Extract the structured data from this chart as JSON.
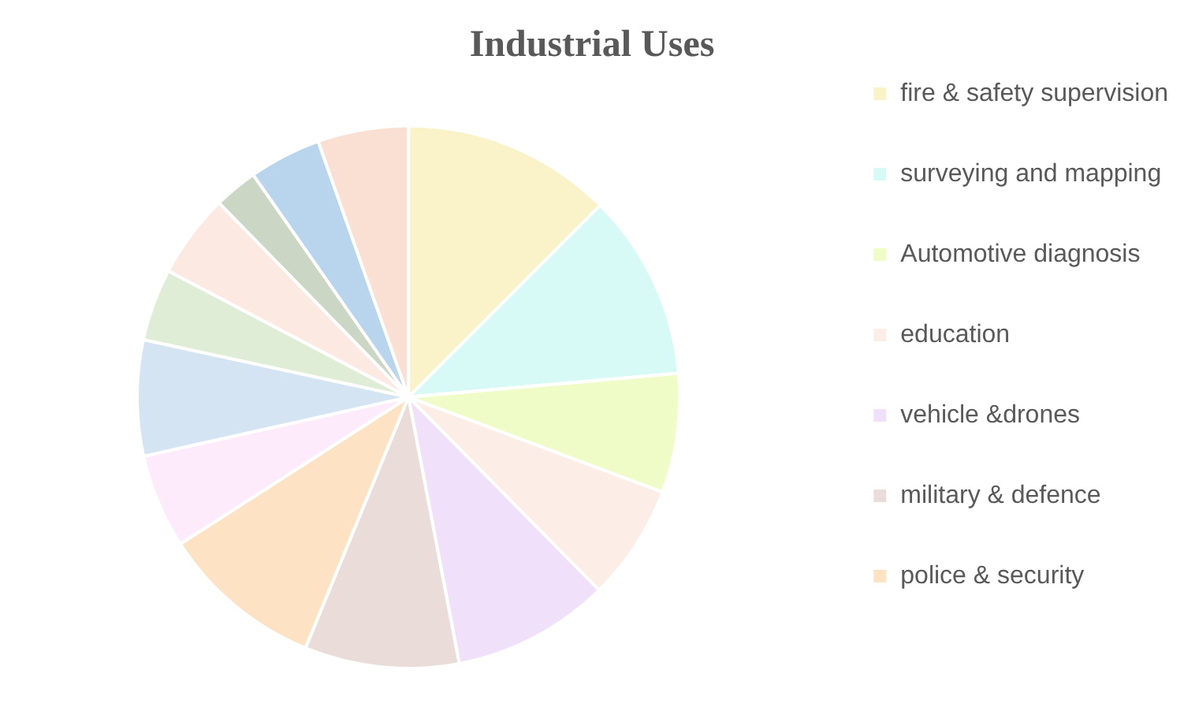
{
  "chart_data": {
    "type": "pie",
    "title": "Industrial Uses",
    "legend": "right",
    "categories": [
      "fire & safety supervision",
      "surveying and mapping",
      "Automotive diagnosis",
      "education",
      "vehicle &drones",
      "military & defence",
      "police & security",
      null,
      null,
      null,
      null,
      null,
      null,
      null
    ],
    "values": [
      12.5,
      11.1,
      7.1,
      6.9,
      9.4,
      9.2,
      9.7,
      5.6,
      6.9,
      4.3,
      5.0,
      2.6,
      4.3,
      5.4
    ],
    "colors": [
      "#faf2c8",
      "#d7faf7",
      "#f0fcc8",
      "#fcede6",
      "#f1e0fa",
      "#eadcd8",
      "#fde3c4",
      "#fdeafb",
      "#d4e4f3",
      "#dfedd6",
      "#fce9e1",
      "#cbd6c5",
      "#b9d5ee",
      "#fae0d2"
    ]
  }
}
